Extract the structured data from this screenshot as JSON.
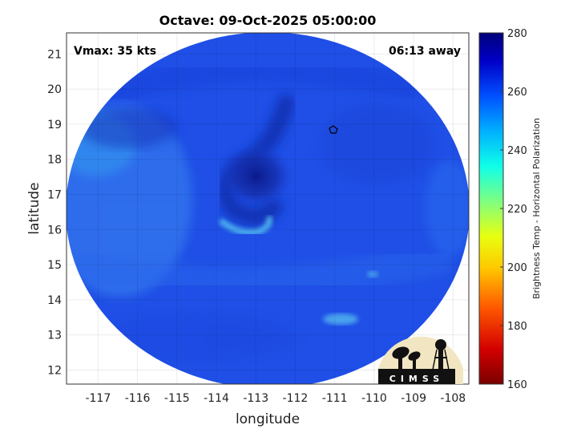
{
  "title": "Octave: 09-Oct-2025 05:00:00",
  "vmax_label": "Vmax: 35 kts",
  "away_label": "06:13 away",
  "xlabel": "longitude",
  "ylabel": "latitude",
  "x_ticks": [
    "-117",
    "-116",
    "-115",
    "-114",
    "-113",
    "-112",
    "-111",
    "-110",
    "-109",
    "-108"
  ],
  "y_ticks": [
    "21",
    "20",
    "19",
    "18",
    "17",
    "16",
    "15",
    "14",
    "13",
    "12"
  ],
  "colorbar": {
    "label": "Brightness Temp - Horizontal Polarization",
    "ticks": [
      "280",
      "260",
      "240",
      "220",
      "200",
      "180",
      "160"
    ],
    "range": [
      160,
      280
    ],
    "colors": [
      "#7a0000",
      "#d40000",
      "#ff5a00",
      "#ffc800",
      "#e8ff10",
      "#7fff80",
      "#10ffe8",
      "#00b0ff",
      "#0050ff",
      "#0000c8",
      "#00007a"
    ]
  },
  "logo": {
    "text": "CIMSS"
  },
  "map": {
    "extent_lon": [
      -117.8,
      -107.6
    ],
    "extent_lat": [
      11.6,
      21.6
    ],
    "storm_center": [
      -113.0,
      17.3
    ],
    "base_color": "#1f4fe6",
    "grid": true
  }
}
